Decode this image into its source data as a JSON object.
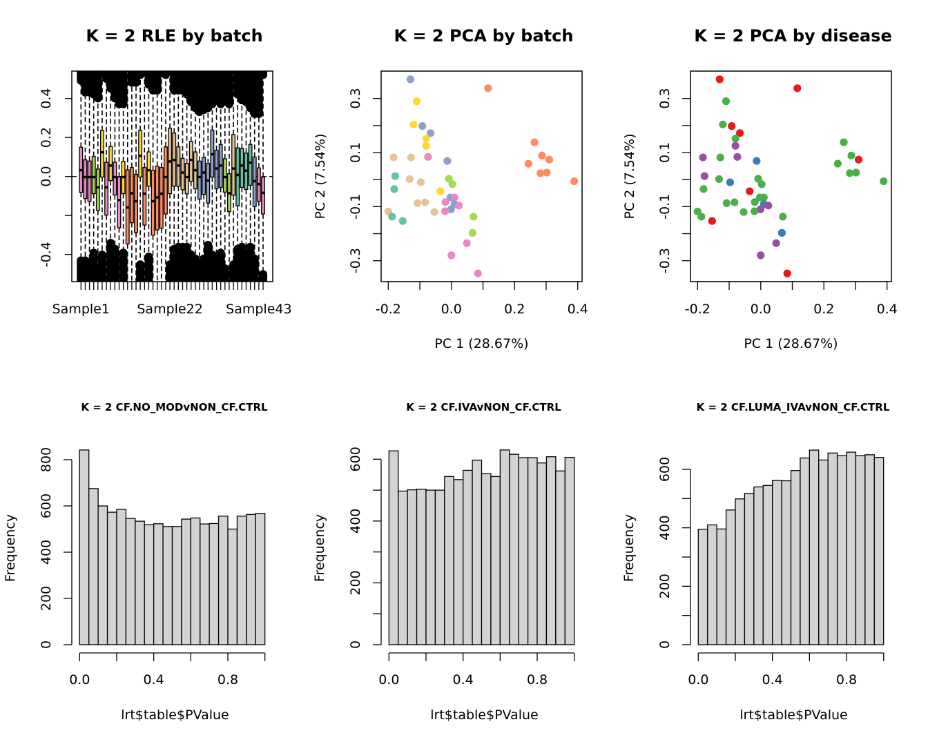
{
  "chart_data": [
    {
      "type": "box",
      "id": "rle",
      "title": "K = 2 RLE by batch",
      "xlabel": "",
      "ylabel": "",
      "ylim": [
        -0.55,
        0.55
      ],
      "yticks": [
        -0.4,
        -0.2,
        0.0,
        0.2,
        0.4
      ],
      "ytick_labels": [
        "-0.4",
        "",
        "0.0",
        "0.2",
        "0.4"
      ],
      "xtick_labels": [
        {
          "index": 1,
          "label": "Sample1"
        },
        {
          "index": 22,
          "label": "Sample22"
        },
        {
          "index": 43,
          "label": "Sample43"
        }
      ],
      "reference_line": 0.0,
      "batch_colors": {
        "pink": "#E78AC3",
        "green": "#A6D854",
        "yellow": "#FFD92F",
        "orange": "#FC8D62",
        "tan": "#E5C494",
        "blue": "#8DA0CB",
        "teal": "#66C2A5"
      },
      "boxes": [
        {
          "batch": "pink",
          "q3": 0.15,
          "median": 0.032,
          "q1": -0.082,
          "outlier_hi": 0.47,
          "outlier_lo": -0.41
        },
        {
          "batch": "pink",
          "q3": 0.085,
          "median": -0.003,
          "q1": -0.113,
          "outlier_hi": 0.41,
          "outlier_lo": -0.41
        },
        {
          "batch": "pink",
          "q3": 0.079,
          "median": -0.003,
          "q1": -0.127,
          "outlier_hi": 0.41,
          "outlier_lo": -0.42
        },
        {
          "batch": "green",
          "q3": 0.103,
          "median": -0.003,
          "q1": -0.088,
          "outlier_hi": 0.4,
          "outlier_lo": -0.37
        },
        {
          "batch": "green",
          "q3": 0.038,
          "median": -0.056,
          "q1": -0.174,
          "outlier_hi": 0.38,
          "outlier_lo": -0.47
        },
        {
          "batch": "yellow",
          "q3": 0.236,
          "median": 0.124,
          "q1": -0.003,
          "outlier_hi": 0.55,
          "outlier_lo": -0.38
        },
        {
          "batch": "pink",
          "q3": 0.073,
          "median": -0.056,
          "q1": -0.198,
          "outlier_hi": 0.48,
          "outlier_lo": -0.55
        },
        {
          "batch": "yellow",
          "q3": 0.154,
          "median": 0.056,
          "q1": -0.021,
          "outlier_hi": 0.43,
          "outlier_lo": -0.32
        },
        {
          "batch": "pink",
          "q3": 0.073,
          "median": -0.003,
          "q1": -0.095,
          "outlier_hi": 0.38,
          "outlier_lo": -0.35
        },
        {
          "batch": "pink",
          "q3": -0.003,
          "median": -0.121,
          "q1": -0.263,
          "outlier_hi": 0.35,
          "outlier_lo": -0.55
        },
        {
          "batch": "yellow",
          "q3": 0.077,
          "median": -0.003,
          "q1": -0.088,
          "outlier_hi": 0.35,
          "outlier_lo": -0.37
        },
        {
          "batch": "orange",
          "q3": 0.034,
          "median": -0.159,
          "q1": -0.346,
          "outlier_hi": 0.55,
          "outlier_lo": -0.55
        },
        {
          "batch": "orange",
          "q3": 0.046,
          "median": -0.086,
          "q1": -0.237,
          "outlier_hi": 0.46,
          "outlier_lo": -0.55
        },
        {
          "batch": "orange",
          "q3": 0.011,
          "median": -0.127,
          "q1": -0.287,
          "outlier_hi": 0.46,
          "outlier_lo": -0.55
        },
        {
          "batch": "yellow",
          "q3": 0.236,
          "median": 0.106,
          "q1": -0.003,
          "outlier_hi": 0.5,
          "outlier_lo": -0.43
        },
        {
          "batch": "orange",
          "q3": 0.046,
          "median": -0.088,
          "q1": -0.249,
          "outlier_hi": 0.55,
          "outlier_lo": -0.55
        },
        {
          "batch": "yellow",
          "q3": 0.126,
          "median": 0.032,
          "q1": -0.05,
          "outlier_hi": 0.45,
          "outlier_lo": -0.39
        },
        {
          "batch": "orange",
          "q3": 0.032,
          "median": -0.127,
          "q1": -0.301,
          "outlier_hi": 0.42,
          "outlier_lo": -0.55
        },
        {
          "batch": "orange",
          "q3": 0.053,
          "median": -0.107,
          "q1": -0.274,
          "outlier_hi": 0.42,
          "outlier_lo": -0.55
        },
        {
          "batch": "orange",
          "q3": 0.046,
          "median": -0.088,
          "q1": -0.265,
          "outlier_hi": 0.55,
          "outlier_lo": -0.55
        },
        {
          "batch": "orange",
          "q3": 0.152,
          "median": -0.003,
          "q1": -0.192,
          "outlier_hi": 0.5,
          "outlier_lo": -0.55
        },
        {
          "batch": "tan",
          "q3": 0.248,
          "median": 0.077,
          "q1": -0.088,
          "outlier_hi": 0.52,
          "outlier_lo": -0.43
        },
        {
          "batch": "tan",
          "q3": 0.223,
          "median": 0.085,
          "q1": -0.05,
          "outlier_hi": 0.42,
          "outlier_lo": -0.35
        },
        {
          "batch": "tan",
          "q3": 0.152,
          "median": 0.056,
          "q1": -0.05,
          "outlier_hi": 0.42,
          "outlier_lo": -0.34
        },
        {
          "batch": "tan",
          "q3": 0.093,
          "median": 0.02,
          "q1": -0.068,
          "outlier_hi": 0.42,
          "outlier_lo": -0.34
        },
        {
          "batch": "tan",
          "q3": 0.067,
          "median": -0.003,
          "q1": -0.089,
          "outlier_hi": 0.4,
          "outlier_lo": -0.34
        },
        {
          "batch": "tan",
          "q3": 0.18,
          "median": 0.085,
          "q1": -0.025,
          "outlier_hi": 0.36,
          "outlier_lo": -0.38
        },
        {
          "batch": "tan",
          "q3": 0.126,
          "median": 0.032,
          "q1": -0.063,
          "outlier_hi": 0.33,
          "outlier_lo": -0.4
        },
        {
          "batch": "blue",
          "q3": 0.079,
          "median": -0.003,
          "q1": -0.116,
          "outlier_hi": 0.31,
          "outlier_lo": -0.45
        },
        {
          "batch": "blue",
          "q3": 0.097,
          "median": 0.02,
          "q1": -0.092,
          "outlier_hi": 0.32,
          "outlier_lo": -0.4
        },
        {
          "batch": "blue",
          "q3": 0.067,
          "median": -0.021,
          "q1": -0.136,
          "outlier_hi": 0.33,
          "outlier_lo": -0.33
        },
        {
          "batch": "blue",
          "q3": 0.238,
          "median": 0.114,
          "q1": -0.003,
          "outlier_hi": 0.35,
          "outlier_lo": -0.38
        },
        {
          "batch": "blue",
          "q3": 0.134,
          "median": 0.041,
          "q1": -0.063,
          "outlier_hi": 0.37,
          "outlier_lo": -0.4
        },
        {
          "batch": "blue",
          "q3": 0.164,
          "median": 0.056,
          "q1": -0.056,
          "outlier_hi": 0.35,
          "outlier_lo": -0.37
        },
        {
          "batch": "green",
          "q3": 0.091,
          "median": -0.003,
          "q1": -0.08,
          "outlier_hi": 0.38,
          "outlier_lo": -0.45
        },
        {
          "batch": "green",
          "q3": 0.014,
          "median": -0.086,
          "q1": -0.18,
          "outlier_hi": 0.35,
          "outlier_lo": -0.55
        },
        {
          "batch": "tan",
          "q3": 0.215,
          "median": 0.041,
          "q1": -0.096,
          "outlier_hi": 0.55,
          "outlier_lo": -0.43
        },
        {
          "batch": "teal",
          "q3": 0.147,
          "median": 0.008,
          "q1": -0.151,
          "outlier_hi": 0.4,
          "outlier_lo": -0.35
        },
        {
          "batch": "teal",
          "q3": 0.143,
          "median": 0.056,
          "q1": -0.056,
          "outlier_hi": 0.37,
          "outlier_lo": -0.34
        },
        {
          "batch": "teal",
          "q3": 0.12,
          "median": 0.03,
          "q1": -0.066,
          "outlier_hi": 0.36,
          "outlier_lo": -0.38
        },
        {
          "batch": "teal",
          "q3": 0.164,
          "median": 0.071,
          "q1": -0.045,
          "outlier_hi": 0.33,
          "outlier_lo": -0.34
        },
        {
          "batch": "blue",
          "q3": 0.1,
          "median": -0.024,
          "q1": -0.154,
          "outlier_hi": 0.3,
          "outlier_lo": -0.4
        },
        {
          "batch": "pink",
          "q3": 0.044,
          "median": -0.039,
          "q1": -0.127,
          "outlier_hi": 0.3,
          "outlier_lo": -0.55
        },
        {
          "batch": "pink",
          "q3": -0.003,
          "median": -0.084,
          "q1": -0.192,
          "outlier_hi": 0.5,
          "outlier_lo": -0.48
        }
      ]
    },
    {
      "type": "scatter",
      "id": "pca_batch",
      "title": "K = 2 PCA by batch",
      "xlabel": "PC 1 (28.67%)",
      "ylabel": "PC 2 (7.54%)",
      "xlim": [
        -0.22,
        0.42
      ],
      "ylim": [
        -0.375,
        0.4
      ],
      "xticks": [
        -0.2,
        -0.1,
        0.0,
        0.1,
        0.2,
        0.3,
        0.4
      ],
      "xtick_labels": [
        "-0.2",
        "",
        "0.0",
        "",
        "0.2",
        "",
        "0.4"
      ],
      "yticks": [
        -0.3,
        -0.2,
        -0.1,
        0.0,
        0.1,
        0.2,
        0.3
      ],
      "ytick_labels": [
        "-0.3",
        "",
        "-0.1",
        "",
        "0.1",
        "",
        "0.3"
      ],
      "colors": {
        "pink": "#E78AC3",
        "green": "#A6D854",
        "yellow": "#FFD92F",
        "orange": "#FC8D62",
        "tan": "#E5C494",
        "blue": "#8DA0CB",
        "teal": "#66C2A5"
      }
    },
    {
      "type": "scatter",
      "id": "pca_disease",
      "title": "K = 2 PCA by disease",
      "xlabel": "PC 1 (28.67%)",
      "ylabel": "PC 2 (7.54%)",
      "xlim": [
        -0.22,
        0.42
      ],
      "ylim": [
        -0.375,
        0.4
      ],
      "xticks": [
        -0.2,
        -0.1,
        0.0,
        0.1,
        0.2,
        0.3,
        0.4
      ],
      "xtick_labels": [
        "-0.2",
        "",
        "0.0",
        "",
        "0.2",
        "",
        "0.4"
      ],
      "yticks": [
        -0.3,
        -0.2,
        -0.1,
        0.0,
        0.1,
        0.2,
        0.3
      ],
      "ytick_labels": [
        "-0.3",
        "",
        "-0.1",
        "",
        "0.1",
        "",
        "0.3"
      ],
      "colors": {
        "red": "#E41A1C",
        "green": "#4DAF4A",
        "blue": "#377EB8",
        "purple": "#984EA3"
      }
    },
    {
      "type": "bar",
      "id": "hist1",
      "title": "K = 2 CF.NO_MODvNON_CF.CTRL",
      "xlabel": "lrt$table$PValue",
      "ylabel": "Frequency",
      "xlim": [
        0,
        1
      ],
      "ylim": [
        0,
        842
      ],
      "bin_width": 0.05,
      "xticks": [
        0,
        0.2,
        0.4,
        0.6,
        0.8,
        1.0
      ],
      "xtick_labels": [
        "0.0",
        "",
        "0.4",
        "",
        "0.8",
        ""
      ],
      "yticks": [
        0,
        200,
        400,
        600,
        800
      ],
      "ytick_labels": [
        "0",
        "200",
        "400",
        "600",
        "800"
      ],
      "values": [
        842,
        675,
        600,
        573,
        585,
        546,
        534,
        519,
        523,
        511,
        511,
        543,
        548,
        522,
        524,
        556,
        500,
        556,
        563,
        568
      ],
      "fill": "#D3D3D3"
    },
    {
      "type": "bar",
      "id": "hist2",
      "title": "K = 2 CF.IVAvNON_CF.CTRL",
      "xlabel": "lrt$table$PValue",
      "ylabel": "Frequency",
      "xlim": [
        0,
        1
      ],
      "ylim": [
        0,
        630
      ],
      "bin_width": 0.05,
      "xticks": [
        0,
        0.2,
        0.4,
        0.6,
        0.8,
        1.0
      ],
      "xtick_labels": [
        "0.0",
        "",
        "0.4",
        "",
        "0.8",
        ""
      ],
      "yticks": [
        0,
        100,
        200,
        300,
        400,
        500,
        600
      ],
      "ytick_labels": [
        "0",
        "",
        "200",
        "",
        "400",
        "",
        "600"
      ],
      "values": [
        627,
        497,
        501,
        503,
        500,
        500,
        544,
        534,
        564,
        597,
        553,
        544,
        630,
        616,
        605,
        605,
        588,
        608,
        562,
        606
      ],
      "fill": "#D3D3D3"
    },
    {
      "type": "bar",
      "id": "hist3",
      "title": "K = 2 CF.LUMA_IVAvNON_CF.CTRL",
      "xlabel": "lrt$table$PValue",
      "ylabel": "Frequency",
      "xlim": [
        0,
        1
      ],
      "ylim": [
        0,
        666
      ],
      "bin_width": 0.05,
      "xticks": [
        0,
        0.2,
        0.4,
        0.6,
        0.8,
        1.0
      ],
      "xtick_labels": [
        "0.0",
        "",
        "0.4",
        "",
        "0.8",
        ""
      ],
      "yticks": [
        0,
        100,
        200,
        300,
        400,
        500,
        600
      ],
      "ytick_labels": [
        "0",
        "",
        "200",
        "",
        "400",
        "",
        "600"
      ],
      "values": [
        395,
        410,
        396,
        461,
        499,
        518,
        540,
        545,
        562,
        561,
        596,
        639,
        666,
        632,
        656,
        647,
        659,
        647,
        650,
        641
      ],
      "fill": "#D3D3D3"
    }
  ],
  "pca_points": [
    {
      "pc1": -0.13,
      "pc2": 0.371,
      "batch": "blue",
      "disease": "red"
    },
    {
      "pc1": 0.116,
      "pc2": 0.338,
      "batch": "orange",
      "disease": "red"
    },
    {
      "pc1": -0.11,
      "pc2": 0.29,
      "batch": "yellow",
      "disease": "green"
    },
    {
      "pc1": -0.12,
      "pc2": 0.204,
      "batch": "yellow",
      "disease": "green"
    },
    {
      "pc1": -0.092,
      "pc2": 0.198,
      "batch": "blue",
      "disease": "red"
    },
    {
      "pc1": -0.066,
      "pc2": 0.172,
      "batch": "blue",
      "disease": "red"
    },
    {
      "pc1": -0.08,
      "pc2": 0.152,
      "batch": "yellow",
      "disease": "green"
    },
    {
      "pc1": -0.08,
      "pc2": 0.125,
      "batch": "yellow",
      "disease": "purple"
    },
    {
      "pc1": -0.183,
      "pc2": 0.082,
      "batch": "tan",
      "disease": "purple"
    },
    {
      "pc1": -0.128,
      "pc2": 0.082,
      "batch": "tan",
      "disease": "green"
    },
    {
      "pc1": -0.074,
      "pc2": 0.084,
      "batch": "pink",
      "disease": "purple"
    },
    {
      "pc1": -0.013,
      "pc2": 0.069,
      "batch": "blue",
      "disease": "blue"
    },
    {
      "pc1": -0.178,
      "pc2": 0.013,
      "batch": "teal",
      "disease": "purple"
    },
    {
      "pc1": -0.132,
      "pc2": 0.002,
      "batch": "tan",
      "disease": "green"
    },
    {
      "pc1": -0.097,
      "pc2": -0.01,
      "batch": "tan",
      "disease": "blue"
    },
    {
      "pc1": -0.008,
      "pc2": 0.003,
      "batch": "green",
      "disease": "green"
    },
    {
      "pc1": 0.003,
      "pc2": -0.017,
      "batch": "green",
      "disease": "green"
    },
    {
      "pc1": -0.181,
      "pc2": -0.035,
      "batch": "teal",
      "disease": "green"
    },
    {
      "pc1": -0.035,
      "pc2": -0.043,
      "batch": "yellow",
      "disease": "red"
    },
    {
      "pc1": -0.003,
      "pc2": -0.066,
      "batch": "blue",
      "disease": "green"
    },
    {
      "pc1": 0.01,
      "pc2": -0.066,
      "batch": "pink",
      "disease": "green"
    },
    {
      "pc1": -0.019,
      "pc2": -0.083,
      "batch": "pink",
      "disease": "green"
    },
    {
      "pc1": 0.01,
      "pc2": -0.091,
      "batch": "blue",
      "disease": "blue"
    },
    {
      "pc1": 0.024,
      "pc2": -0.096,
      "batch": "pink",
      "disease": "purple"
    },
    {
      "pc1": -0.001,
      "pc2": -0.11,
      "batch": "blue",
      "disease": "purple"
    },
    {
      "pc1": -0.02,
      "pc2": -0.117,
      "batch": "pink",
      "disease": "green"
    },
    {
      "pc1": -0.108,
      "pc2": -0.087,
      "batch": "tan",
      "disease": "green"
    },
    {
      "pc1": -0.083,
      "pc2": -0.084,
      "batch": "tan",
      "disease": "green"
    },
    {
      "pc1": -0.2,
      "pc2": -0.118,
      "batch": "tan",
      "disease": "green"
    },
    {
      "pc1": -0.054,
      "pc2": -0.12,
      "batch": "tan",
      "disease": "green"
    },
    {
      "pc1": -0.188,
      "pc2": -0.137,
      "batch": "teal",
      "disease": "green"
    },
    {
      "pc1": -0.154,
      "pc2": -0.153,
      "batch": "teal",
      "disease": "red"
    },
    {
      "pc1": 0.07,
      "pc2": -0.137,
      "batch": "green",
      "disease": "green"
    },
    {
      "pc1": 0.067,
      "pc2": -0.197,
      "batch": "green",
      "disease": "blue"
    },
    {
      "pc1": 0.049,
      "pc2": -0.235,
      "batch": "pink",
      "disease": "purple"
    },
    {
      "pc1": 0.0,
      "pc2": -0.28,
      "batch": "pink",
      "disease": "purple"
    },
    {
      "pc1": 0.084,
      "pc2": -0.347,
      "batch": "pink",
      "disease": "red"
    },
    {
      "pc1": 0.263,
      "pc2": 0.138,
      "batch": "orange",
      "disease": "green"
    },
    {
      "pc1": 0.287,
      "pc2": 0.089,
      "batch": "orange",
      "disease": "green"
    },
    {
      "pc1": 0.31,
      "pc2": 0.074,
      "batch": "orange",
      "disease": "red"
    },
    {
      "pc1": 0.244,
      "pc2": 0.059,
      "batch": "orange",
      "disease": "green"
    },
    {
      "pc1": 0.282,
      "pc2": 0.024,
      "batch": "orange",
      "disease": "green"
    },
    {
      "pc1": 0.302,
      "pc2": 0.026,
      "batch": "orange",
      "disease": "green"
    },
    {
      "pc1": 0.389,
      "pc2": -0.006,
      "batch": "orange",
      "disease": "green"
    }
  ]
}
